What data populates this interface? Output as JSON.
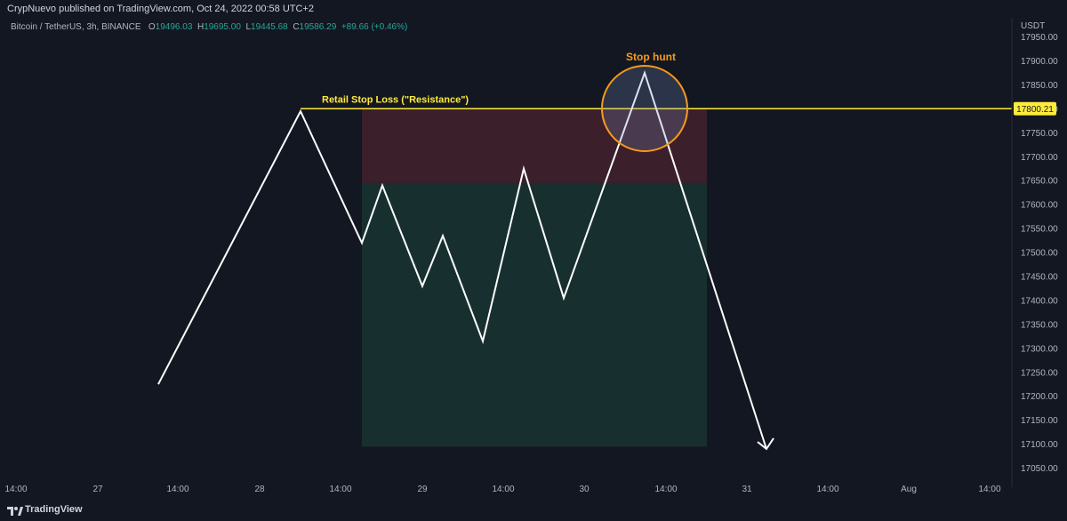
{
  "header": {
    "published": "CrypNuevo published on TradingView.com, Oct 24, 2022 00:58 UTC+2",
    "symbol": "Bitcoin / TetherUS, 3h, BINANCE",
    "o_label": "O",
    "o_value": "19496.03",
    "h_label": "H",
    "h_value": "19695.00",
    "l_label": "L",
    "l_value": "19445.68",
    "c_label": "C",
    "c_value": "19586.29",
    "change": "+89.66 (+0.46%)",
    "axis_unit": "USDT"
  },
  "footer": {
    "brand": "TradingView"
  },
  "chart_data": {
    "type": "line",
    "ylim": [
      17025,
      17990
    ],
    "y_ticks": [
      17950,
      17900,
      17850,
      17800,
      17750,
      17700,
      17650,
      17600,
      17550,
      17500,
      17450,
      17400,
      17350,
      17300,
      17250,
      17200,
      17150,
      17100,
      17050
    ],
    "y_tick_labels": [
      "17950.00",
      "17900.00",
      "17850.00",
      "17800.00",
      "17750.00",
      "17700.00",
      "17650.00",
      "17600.00",
      "17550.00",
      "17500.00",
      "17450.00",
      "17400.00",
      "17350.00",
      "17300.00",
      "17250.00",
      "17200.00",
      "17150.00",
      "17100.00",
      "17050.00"
    ],
    "x_tick_labels": [
      "14:00",
      "27",
      "14:00",
      "28",
      "14:00",
      "29",
      "14:00",
      "30",
      "14:00",
      "31",
      "14:00",
      "Aug",
      "14:00"
    ],
    "price_path": [
      17225,
      17795,
      17520,
      17640,
      17430,
      17535,
      17315,
      17675,
      17405,
      17875,
      17090
    ],
    "resistance": {
      "label": "Retail Stop Loss (\"Resistance\")",
      "value": 17800.21,
      "value_label": "17800.21",
      "color": "#ffeb3b"
    },
    "position": {
      "top": 17800,
      "entry": 17645,
      "bottom": 17095,
      "stop_color": "#3b1f2a",
      "target_color": "#17302f"
    },
    "annotation": {
      "label": "Stop hunt",
      "color": "#f59b1c"
    },
    "line_color": "#ffffff"
  }
}
